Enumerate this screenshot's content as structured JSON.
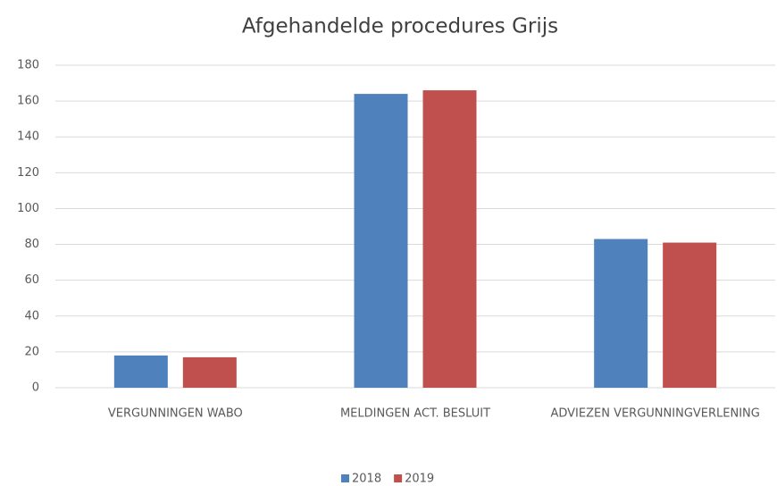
{
  "chart_data": {
    "type": "bar",
    "title": "Afgehandelde procedures Grijs",
    "categories": [
      "VERGUNNINGEN WABO",
      "MELDINGEN ACT. BESLUIT",
      "ADVIEZEN VERGUNNINGVERLENING"
    ],
    "series": [
      {
        "name": "2018",
        "color": "#4f81bd",
        "values": [
          18,
          164,
          83
        ]
      },
      {
        "name": "2019",
        "color": "#c0504d",
        "values": [
          17,
          166,
          81
        ]
      }
    ],
    "ylim": [
      0,
      180
    ],
    "yticks": [
      0,
      20,
      40,
      60,
      80,
      100,
      120,
      140,
      160,
      180
    ],
    "grid": true,
    "legend": "bottom"
  }
}
